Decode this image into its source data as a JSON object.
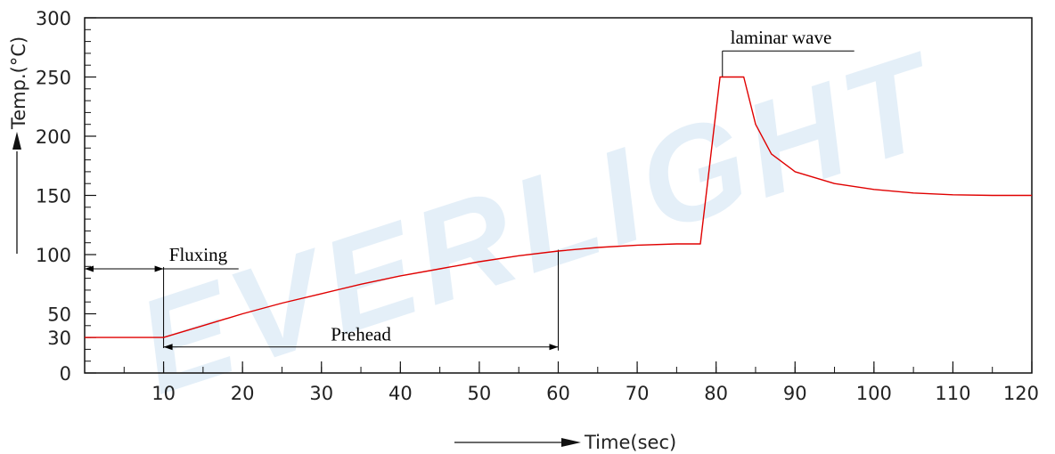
{
  "chart_data": {
    "type": "line",
    "title": "",
    "xlabel": "Time(sec)",
    "ylabel": "Temp.(°C)",
    "xlim": [
      0,
      120
    ],
    "ylim": [
      0,
      300
    ],
    "x_ticks": [
      10,
      20,
      30,
      40,
      50,
      60,
      70,
      80,
      90,
      100,
      110,
      120
    ],
    "y_ticks": [
      0,
      30,
      50,
      100,
      150,
      200,
      250,
      300
    ],
    "grid": false,
    "series": [
      {
        "color": "#e00000",
        "x": [
          0,
          10,
          15,
          20,
          25,
          30,
          35,
          40,
          45,
          50,
          55,
          60,
          65,
          70,
          75,
          78,
          80.5,
          81.5,
          83.5,
          85,
          87,
          90,
          95,
          100,
          105,
          110,
          115,
          120
        ],
        "y": [
          30,
          30,
          40,
          50,
          59,
          67,
          75,
          82,
          88,
          94,
          99,
          103,
          106,
          108,
          109,
          109,
          250,
          250,
          250,
          210,
          185,
          170,
          160,
          155,
          152,
          150.5,
          150,
          150
        ]
      }
    ],
    "annotations": {
      "fluxing": {
        "label": "Fluxing",
        "from": 0,
        "to": 10
      },
      "prehead": {
        "label": "Prehead",
        "from": 10,
        "to": 60
      },
      "laminar_wave": {
        "label": "laminar wave",
        "from": 80.5,
        "to": 83.5
      }
    }
  },
  "watermark": "EVERLIGHT",
  "colors": {
    "curve": "#e00000",
    "axis": "#111111",
    "watermark": "#cfe3f3"
  }
}
